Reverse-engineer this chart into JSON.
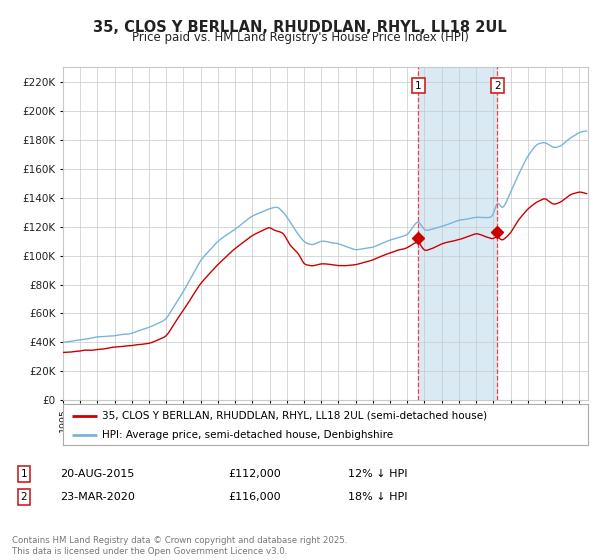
{
  "title": "35, CLOS Y BERLLAN, RHUDDLAN, RHYL, LL18 2UL",
  "subtitle": "Price paid vs. HM Land Registry's House Price Index (HPI)",
  "ylim": [
    0,
    230000
  ],
  "xlim_start": 1995.0,
  "xlim_end": 2025.5,
  "sale1_x": 2015.64,
  "sale1_y": 112000,
  "sale2_x": 2020.23,
  "sale2_y": 116000,
  "legend_line1": "35, CLOS Y BERLLAN, RHUDDLAN, RHYL, LL18 2UL (semi-detached house)",
  "legend_line2": "HPI: Average price, semi-detached house, Denbighshire",
  "footer": "Contains HM Land Registry data © Crown copyright and database right 2025.\nThis data is licensed under the Open Government Licence v3.0.",
  "hpi_color": "#7ab4d8",
  "price_color": "#cc0000",
  "shade_color": "#daeaf5",
  "grid_color": "#c8c8c8",
  "bg_color": "#ffffff",
  "marker_color": "#cc0000",
  "vline_color": "#ee4444",
  "title_color": "#222222",
  "tick_label_color": "#222222",
  "box_edge_color": "#cc2222"
}
